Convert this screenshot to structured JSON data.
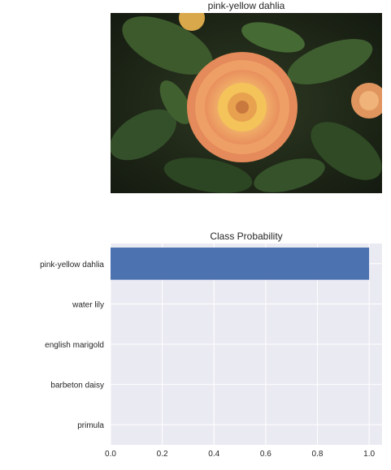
{
  "image_panel": {
    "title": "pink-yellow dahlia",
    "photo_icon": "dahlia-flower-photo"
  },
  "chart_data": {
    "type": "bar",
    "orientation": "horizontal",
    "title": "Class Probability",
    "categories": [
      "pink-yellow dahlia",
      "water lily",
      "english marigold",
      "barbeton daisy",
      "primula"
    ],
    "values": [
      1.0,
      0.0,
      0.0,
      0.0,
      0.0
    ],
    "xlabel": "",
    "ylabel": "",
    "xlim": [
      0,
      1.05
    ],
    "xticks": [
      0.0,
      0.2,
      0.4,
      0.6,
      0.8,
      1.0
    ],
    "xtick_labels": [
      "0.0",
      "0.2",
      "0.4",
      "0.6",
      "0.8",
      "1.0"
    ],
    "grid": true,
    "bar_color": "#4c72b0",
    "background_color": "#eaeaf2"
  }
}
